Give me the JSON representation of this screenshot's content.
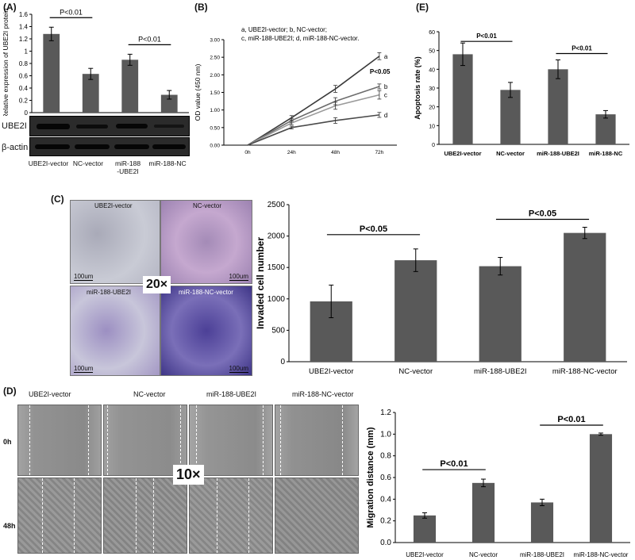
{
  "panel_labels": {
    "a": "(A)",
    "b": "(B)",
    "c": "(C)",
    "d": "(D)",
    "e": "(E)"
  },
  "blot": {
    "rows": [
      "UBE2I",
      "β-actin"
    ],
    "columns": [
      "UBE2I-vector",
      "NC-vector",
      "miR-188\n-UBE2I",
      "miR-188-NC"
    ]
  },
  "images_c": {
    "titles": [
      "UBE2I-vector",
      "NC-vector",
      "miR-188-UBE2I",
      "miR-188-NC-vector"
    ],
    "scalebar": "100um",
    "magnification": "20×"
  },
  "images_d": {
    "titles": [
      "UBE2I-vector",
      "NC-vector",
      "miR-188-UBE2I",
      "miR-188-NC-vector"
    ],
    "rows": [
      "0h",
      "48h"
    ],
    "magnification": "10×"
  },
  "chart_data": [
    {
      "id": "A",
      "type": "bar",
      "categories": [
        "UBE2I-vector",
        "NC-vector",
        "miR-188-UBE2I",
        "miR-188-NC"
      ],
      "values": [
        1.28,
        0.63,
        0.86,
        0.29
      ],
      "errors": [
        0.11,
        0.09,
        0.09,
        0.07
      ],
      "ylabel": "Relative expression of UBE2I protein",
      "ylim": [
        0,
        1.6
      ],
      "yticks": [
        "0",
        "0.2",
        "0.4",
        "0.6",
        "0.8",
        "1",
        "1.2",
        "1.4",
        "1.6"
      ],
      "sig": [
        {
          "text": "P<0.01",
          "from": 0,
          "to": 1
        },
        {
          "text": "P<0.01",
          "from": 2,
          "to": 3
        }
      ],
      "colors": {
        "bar": "#595959"
      }
    },
    {
      "id": "B",
      "type": "line",
      "x": [
        "0h",
        "24h",
        "48h",
        "72h"
      ],
      "series": [
        {
          "name": "a",
          "values": [
            0,
            0.78,
            1.6,
            2.53
          ],
          "errors": [
            0,
            0.06,
            0.1,
            0.1
          ]
        },
        {
          "name": "b",
          "values": [
            0,
            0.7,
            1.25,
            1.67
          ],
          "errors": [
            0,
            0.06,
            0.1,
            0.07
          ]
        },
        {
          "name": "c",
          "values": [
            0,
            0.63,
            1.12,
            1.43
          ],
          "errors": [
            0,
            0.05,
            0.1,
            0.12
          ]
        },
        {
          "name": "d",
          "values": [
            0,
            0.5,
            0.7,
            0.86
          ],
          "errors": [
            0,
            0.04,
            0.08,
            0.07
          ]
        }
      ],
      "ylabel": "OD value (450 nm)",
      "ylim": [
        0,
        3
      ],
      "yticks": [
        "0.00",
        "0.50",
        "1.00",
        "1.50",
        "2.00",
        "2.50",
        "3.00"
      ],
      "legend": [
        "a, UBE2I-vector;    b, NC-vector;",
        "c, miR-188-UBE2I;  d, miR-188-NC-vector."
      ],
      "annotation": "P<0.05",
      "colors": {
        "a": "#3a3a3a",
        "b": "#6c6c6c",
        "c": "#9a9a9a",
        "d": "#4a4a4a"
      }
    },
    {
      "id": "C",
      "type": "bar",
      "categories": [
        "UBE2I-vector",
        "NC-vector",
        "miR-188-UBE2I",
        "miR-188-NC-vector"
      ],
      "values": [
        960,
        1615,
        1520,
        2050
      ],
      "errors": [
        260,
        180,
        140,
        90
      ],
      "ylabel": "Invaded cell number",
      "ylim": [
        0,
        2500
      ],
      "yticks": [
        "0",
        "500",
        "1000",
        "1500",
        "2000",
        "2500"
      ],
      "sig": [
        {
          "text": "P<0.05",
          "from": 0,
          "to": 1
        },
        {
          "text": "P<0.05",
          "from": 2,
          "to": 3
        }
      ],
      "colors": {
        "bar": "#595959"
      }
    },
    {
      "id": "D",
      "type": "bar",
      "categories": [
        "UBE2I-vector",
        "NC-vector",
        "miR-188-UBE2I",
        "miR-188-NC-vector"
      ],
      "values": [
        0.25,
        0.55,
        0.37,
        1.0
      ],
      "errors": [
        0.025,
        0.035,
        0.03,
        0.01
      ],
      "ylabel": "Migration distance (mm)",
      "ylim": [
        0,
        1.2
      ],
      "yticks": [
        "0.0",
        "0.2",
        "0.4",
        "0.6",
        "0.8",
        "1.0",
        "1.2"
      ],
      "sig": [
        {
          "text": "P<0.01",
          "from": 0,
          "to": 1
        },
        {
          "text": "P<0.01",
          "from": 2,
          "to": 3
        }
      ],
      "colors": {
        "bar": "#595959"
      }
    },
    {
      "id": "E",
      "type": "bar",
      "categories": [
        "UBE2I-vector",
        "NC-vector",
        "miR-188-UBE2I",
        "miR-188-NC"
      ],
      "values": [
        48,
        29,
        40,
        16
      ],
      "errors": [
        6,
        4,
        5,
        2
      ],
      "ylabel": "Apoptosis rate (%)",
      "ylim": [
        0,
        60
      ],
      "yticks": [
        "0",
        "10",
        "20",
        "30",
        "40",
        "50",
        "60"
      ],
      "sig": [
        {
          "text": "P<0.01",
          "from": 0,
          "to": 1
        },
        {
          "text": "P<0.01",
          "from": 2,
          "to": 3
        }
      ],
      "colors": {
        "bar": "#595959"
      }
    }
  ]
}
